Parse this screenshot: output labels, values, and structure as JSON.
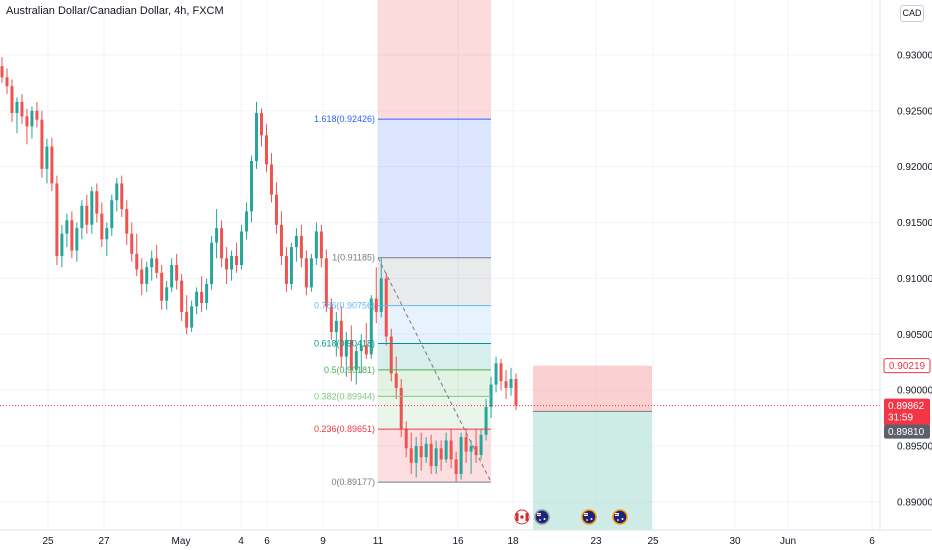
{
  "title": "Australian Dollar/Canadian Dollar, 4h, FXCM",
  "currency_button": "CAD",
  "colors": {
    "up": "#26a69a",
    "down": "#ef5350",
    "grid": "#f0f3fa",
    "fib_1618": "#2962ff",
    "fib_1": "#787b86",
    "fib_0786": "#64b5f6",
    "fib_0618": "#009688",
    "fib_05": "#4caf50",
    "fib_0382": "#81c784",
    "fib_0236": "#f23645",
    "fib_0": "#787b86",
    "last_price": "#f23645",
    "stop_zone": "#f7a9a9",
    "target_zone": "#a6dcd0"
  },
  "chart_data": {
    "type": "candlestick",
    "symbol": "Australian Dollar/Canadian Dollar",
    "timeframe": "4h",
    "source": "FXCM",
    "y_ticks": [
      "0.93000",
      "0.92500",
      "0.92000",
      "0.91500",
      "0.91000",
      "0.90500",
      "0.90000",
      "0.89500",
      "0.89000"
    ],
    "x_ticks": [
      "25",
      "27",
      "May",
      "4",
      "6",
      "9",
      "11",
      "16",
      "18",
      "23",
      "25",
      "30",
      "Jun",
      "6"
    ],
    "ylim": [
      0.8882,
      0.9342
    ],
    "price_badges": [
      {
        "value": "0.90219",
        "style": "outline"
      },
      {
        "value": "0.89862",
        "sub": "31:59",
        "style": "filled-red"
      },
      {
        "value": "0.89810",
        "style": "filled-gray"
      }
    ],
    "fib_retracement": {
      "levels": [
        {
          "label": "1.618(0.92426)",
          "ratio": 1.618,
          "price": 0.92426
        },
        {
          "label": "1(0.91185)",
          "ratio": 1,
          "price": 0.91185
        },
        {
          "label": "0.786(0.90756)",
          "ratio": 0.786,
          "price": 0.90756
        },
        {
          "label": "0.618(0.90418)",
          "ratio": 0.618,
          "price": 0.90418
        },
        {
          "label": "0.5(0.90181)",
          "ratio": 0.5,
          "price": 0.90181
        },
        {
          "label": "0.382(0.89944)",
          "ratio": 0.382,
          "price": 0.89944
        },
        {
          "label": "0.236(0.89651)",
          "ratio": 0.236,
          "price": 0.89651
        },
        {
          "label": "0(0.89177)",
          "ratio": 0,
          "price": 0.89177
        }
      ]
    },
    "position": {
      "entry": 0.8981,
      "stop": 0.90219
    },
    "last_price": 0.89862,
    "candles": [
      [
        0.929,
        0.9298,
        0.9275,
        0.928
      ],
      [
        0.928,
        0.9288,
        0.9265,
        0.9272
      ],
      [
        0.9272,
        0.9278,
        0.924,
        0.9248
      ],
      [
        0.9248,
        0.9262,
        0.923,
        0.9258
      ],
      [
        0.9258,
        0.9265,
        0.9238,
        0.9245
      ],
      [
        0.9245,
        0.9252,
        0.922,
        0.9236
      ],
      [
        0.9236,
        0.9254,
        0.9225,
        0.925
      ],
      [
        0.925,
        0.9258,
        0.9235,
        0.9242
      ],
      [
        0.9242,
        0.925,
        0.919,
        0.9198
      ],
      [
        0.9198,
        0.9225,
        0.9185,
        0.9218
      ],
      [
        0.9218,
        0.9226,
        0.9178,
        0.9185
      ],
      [
        0.9185,
        0.9192,
        0.9112,
        0.912
      ],
      [
        0.912,
        0.9148,
        0.911,
        0.914
      ],
      [
        0.914,
        0.9158,
        0.9128,
        0.9152
      ],
      [
        0.9152,
        0.916,
        0.9118,
        0.9125
      ],
      [
        0.9125,
        0.915,
        0.9115,
        0.9145
      ],
      [
        0.9145,
        0.917,
        0.9135,
        0.9165
      ],
      [
        0.9165,
        0.9175,
        0.914,
        0.9148
      ],
      [
        0.9148,
        0.9182,
        0.914,
        0.9178
      ],
      [
        0.9178,
        0.9185,
        0.915,
        0.9158
      ],
      [
        0.9158,
        0.9168,
        0.9128,
        0.9135
      ],
      [
        0.9135,
        0.915,
        0.912,
        0.9145
      ],
      [
        0.9145,
        0.9175,
        0.9138,
        0.917
      ],
      [
        0.917,
        0.919,
        0.916,
        0.9185
      ],
      [
        0.9185,
        0.9192,
        0.9155,
        0.9162
      ],
      [
        0.9162,
        0.917,
        0.913,
        0.914
      ],
      [
        0.914,
        0.915,
        0.9115,
        0.9122
      ],
      [
        0.9122,
        0.914,
        0.9102,
        0.9108
      ],
      [
        0.9108,
        0.9118,
        0.9085,
        0.9095
      ],
      [
        0.9095,
        0.9115,
        0.9088,
        0.911
      ],
      [
        0.911,
        0.9125,
        0.9098,
        0.9118
      ],
      [
        0.9118,
        0.913,
        0.91,
        0.9105
      ],
      [
        0.9105,
        0.9112,
        0.9072,
        0.908
      ],
      [
        0.908,
        0.9098,
        0.9072,
        0.9092
      ],
      [
        0.9092,
        0.9118,
        0.9088,
        0.9112
      ],
      [
        0.9112,
        0.9122,
        0.909,
        0.9098
      ],
      [
        0.9098,
        0.9104,
        0.9062,
        0.907
      ],
      [
        0.907,
        0.9085,
        0.905,
        0.9056
      ],
      [
        0.9056,
        0.908,
        0.9052,
        0.9075
      ],
      [
        0.9075,
        0.9092,
        0.9068,
        0.9088
      ],
      [
        0.9088,
        0.9102,
        0.907,
        0.9078
      ],
      [
        0.9078,
        0.91,
        0.9072,
        0.9095
      ],
      [
        0.9095,
        0.9138,
        0.909,
        0.9132
      ],
      [
        0.9132,
        0.9162,
        0.9118,
        0.9145
      ],
      [
        0.9145,
        0.9152,
        0.911,
        0.9118
      ],
      [
        0.9118,
        0.9128,
        0.9095,
        0.9108
      ],
      [
        0.9108,
        0.9125,
        0.9098,
        0.912
      ],
      [
        0.912,
        0.9132,
        0.9105,
        0.9112
      ],
      [
        0.9112,
        0.9148,
        0.9108,
        0.9142
      ],
      [
        0.9142,
        0.9168,
        0.9135,
        0.916
      ],
      [
        0.916,
        0.921,
        0.915,
        0.9205
      ],
      [
        0.9205,
        0.9258,
        0.9198,
        0.9248
      ],
      [
        0.9248,
        0.9252,
        0.9218,
        0.9228
      ],
      [
        0.9228,
        0.9238,
        0.9195,
        0.9202
      ],
      [
        0.9202,
        0.9212,
        0.9168,
        0.9175
      ],
      [
        0.9175,
        0.9186,
        0.914,
        0.9148
      ],
      [
        0.9148,
        0.916,
        0.9112,
        0.912
      ],
      [
        0.912,
        0.9128,
        0.9088,
        0.9095
      ],
      [
        0.9095,
        0.9132,
        0.909,
        0.9128
      ],
      [
        0.9128,
        0.9145,
        0.9115,
        0.9138
      ],
      [
        0.9138,
        0.9148,
        0.911,
        0.9118
      ],
      [
        0.9118,
        0.9125,
        0.9085,
        0.9092
      ],
      [
        0.9092,
        0.9122,
        0.9088,
        0.9118
      ],
      [
        0.9118,
        0.915,
        0.9112,
        0.9142
      ],
      [
        0.9142,
        0.9148,
        0.911,
        0.9118
      ],
      [
        0.9118,
        0.9126,
        0.907,
        0.9075
      ],
      [
        0.9075,
        0.9082,
        0.9045,
        0.9052
      ],
      [
        0.9052,
        0.907,
        0.903,
        0.9062
      ],
      [
        0.9062,
        0.9075,
        0.902,
        0.903
      ],
      [
        0.903,
        0.9052,
        0.9012,
        0.9045
      ],
      [
        0.9045,
        0.9058,
        0.9008,
        0.9018
      ],
      [
        0.9018,
        0.904,
        0.9005,
        0.9035
      ],
      [
        0.9035,
        0.905,
        0.9015,
        0.904
      ],
      [
        0.904,
        0.906,
        0.9028,
        0.9032
      ],
      [
        0.9032,
        0.9085,
        0.9028,
        0.9082
      ],
      [
        0.9082,
        0.911,
        0.906,
        0.907
      ],
      [
        0.907,
        0.9118,
        0.9065,
        0.91
      ],
      [
        0.91,
        0.9105,
        0.904,
        0.9048
      ],
      [
        0.9048,
        0.9055,
        0.9008,
        0.9015
      ],
      [
        0.9015,
        0.903,
        0.8992,
        0.9002
      ],
      [
        0.9002,
        0.901,
        0.8958,
        0.8965
      ],
      [
        0.8965,
        0.8972,
        0.894,
        0.8948
      ],
      [
        0.8948,
        0.8962,
        0.8925,
        0.8935
      ],
      [
        0.8935,
        0.8958,
        0.8922,
        0.895
      ],
      [
        0.895,
        0.8962,
        0.8928,
        0.894
      ],
      [
        0.894,
        0.8958,
        0.8935,
        0.8952
      ],
      [
        0.8952,
        0.896,
        0.8925,
        0.8932
      ],
      [
        0.8932,
        0.8955,
        0.8925,
        0.8948
      ],
      [
        0.8948,
        0.8955,
        0.8928,
        0.8938
      ],
      [
        0.8938,
        0.8962,
        0.8935,
        0.8955
      ],
      [
        0.8955,
        0.8965,
        0.893,
        0.8938
      ],
      [
        0.8938,
        0.8945,
        0.8918,
        0.8925
      ],
      [
        0.8925,
        0.8962,
        0.892,
        0.8958
      ],
      [
        0.8958,
        0.8966,
        0.8935,
        0.8945
      ],
      [
        0.8945,
        0.8955,
        0.8925,
        0.895
      ],
      [
        0.895,
        0.8965,
        0.8935,
        0.8942
      ],
      [
        0.8942,
        0.8965,
        0.8938,
        0.896
      ],
      [
        0.896,
        0.8992,
        0.8955,
        0.8985
      ],
      [
        0.8985,
        0.9012,
        0.8975,
        0.9005
      ],
      [
        0.9005,
        0.903,
        0.8998,
        0.9024
      ],
      [
        0.9024,
        0.9028,
        0.9,
        0.9008
      ],
      [
        0.9008,
        0.9018,
        0.8992,
        0.9002
      ],
      [
        0.9002,
        0.902,
        0.8995,
        0.901
      ],
      [
        0.901,
        0.9015,
        0.8982,
        0.8986
      ]
    ]
  }
}
